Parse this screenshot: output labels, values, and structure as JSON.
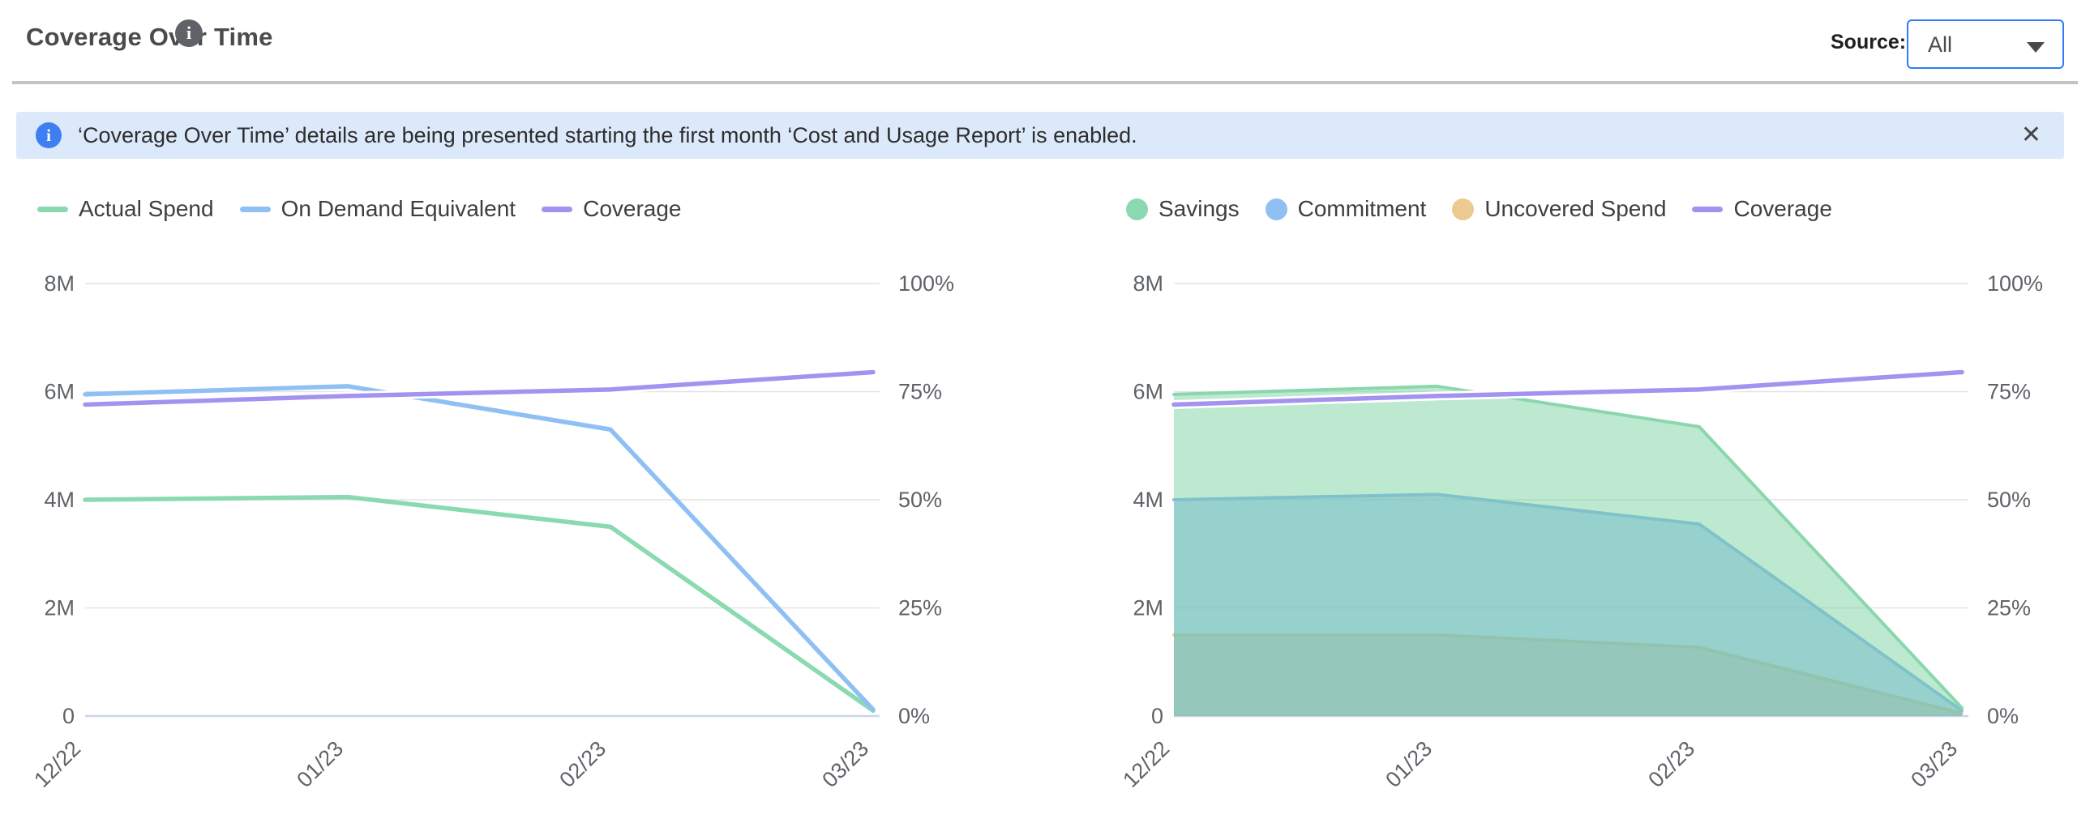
{
  "header": {
    "title": "Coverage Over Time",
    "info_icon": "i",
    "source_label": "Source:",
    "source_value": "All"
  },
  "banner": {
    "icon": "i",
    "text": "‘Coverage Over Time’ details are being presented starting the first month ‘Cost and Usage Report’ is enabled.",
    "close_glyph": "✕"
  },
  "colors": {
    "grid": "#e3e3e3",
    "zero_line": "#c9d4ee",
    "axis_text": "#5f6368",
    "accent_blue": "#2e7cf6",
    "banner_bg": "#dce9fb",
    "banner_icon_bg": "#3d7ef2",
    "green": "#8bd9b0",
    "blue": "#8fc0f4",
    "tan": "#ecca90",
    "purple": "#a492f0"
  },
  "chart_data": [
    {
      "name": "spend-coverage-line-chart",
      "type": "line",
      "x": [
        "12/22",
        "01/23",
        "02/23",
        "03/23"
      ],
      "y_left_ticks": [
        "0",
        "2M",
        "4M",
        "6M",
        "8M"
      ],
      "y_right_ticks": [
        "0%",
        "25%",
        "50%",
        "75%",
        "100%"
      ],
      "y_left_lim_millions": [
        0,
        8
      ],
      "y_right_lim_percent": [
        0,
        100
      ],
      "grid": true,
      "legend_position": "top-left",
      "legend": [
        {
          "label": "Actual Spend",
          "swatch": "line",
          "color": "#8bd9b0"
        },
        {
          "label": "On Demand Equivalent",
          "swatch": "line",
          "color": "#8fc0f4"
        },
        {
          "label": "Coverage",
          "swatch": "line",
          "color": "#a492f0"
        }
      ],
      "series": [
        {
          "name": "Actual Spend",
          "kind": "line",
          "axis": "left",
          "color": "#8bd9b0",
          "values_millions": [
            4.0,
            4.05,
            3.5,
            0.1
          ]
        },
        {
          "name": "On Demand Equivalent",
          "kind": "line",
          "axis": "left",
          "color": "#8fc0f4",
          "values_millions": [
            5.95,
            6.1,
            5.3,
            0.12
          ]
        },
        {
          "name": "Coverage",
          "kind": "line",
          "axis": "right",
          "color": "#a492f0",
          "halo": true,
          "values_percent": [
            72,
            74,
            75.5,
            79.5
          ]
        }
      ]
    },
    {
      "name": "savings-breakdown-area-chart",
      "type": "area",
      "x": [
        "12/22",
        "01/23",
        "02/23",
        "03/23"
      ],
      "y_left_ticks": [
        "0",
        "2M",
        "4M",
        "6M",
        "8M"
      ],
      "y_right_ticks": [
        "0%",
        "25%",
        "50%",
        "75%",
        "100%"
      ],
      "y_left_lim_millions": [
        0,
        8
      ],
      "y_right_lim_percent": [
        0,
        100
      ],
      "grid": true,
      "legend_position": "top-left",
      "legend": [
        {
          "label": "Savings",
          "swatch": "dot",
          "color": "#8bd9b0"
        },
        {
          "label": "Commitment",
          "swatch": "dot",
          "color": "#8fc0f4"
        },
        {
          "label": "Uncovered Spend",
          "swatch": "dot",
          "color": "#ecca90"
        },
        {
          "label": "Coverage",
          "swatch": "line",
          "color": "#a492f0"
        }
      ],
      "series": [
        {
          "name": "Uncovered Spend",
          "kind": "area",
          "stack": true,
          "fill": "rgba(231,185,106,0.45)",
          "edge": "#ecca90",
          "values_millions": [
            1.5,
            1.5,
            1.27,
            0.05
          ]
        },
        {
          "name": "Commitment",
          "kind": "area",
          "stack": true,
          "fill": "rgba(116,169,239,0.5)",
          "edge": "#8db9f2",
          "values_millions": [
            2.5,
            2.6,
            2.28,
            0.05
          ]
        },
        {
          "name": "Savings",
          "kind": "area",
          "stack": true,
          "fill": "rgba(111,207,154,0.45)",
          "edge": "#8ad7ad",
          "values_millions": [
            1.95,
            2.0,
            1.8,
            0.05
          ]
        },
        {
          "name": "Coverage",
          "kind": "line",
          "axis": "right",
          "color": "#a492f0",
          "halo": true,
          "values_percent": [
            72,
            74,
            75.5,
            79.5
          ]
        }
      ]
    }
  ]
}
